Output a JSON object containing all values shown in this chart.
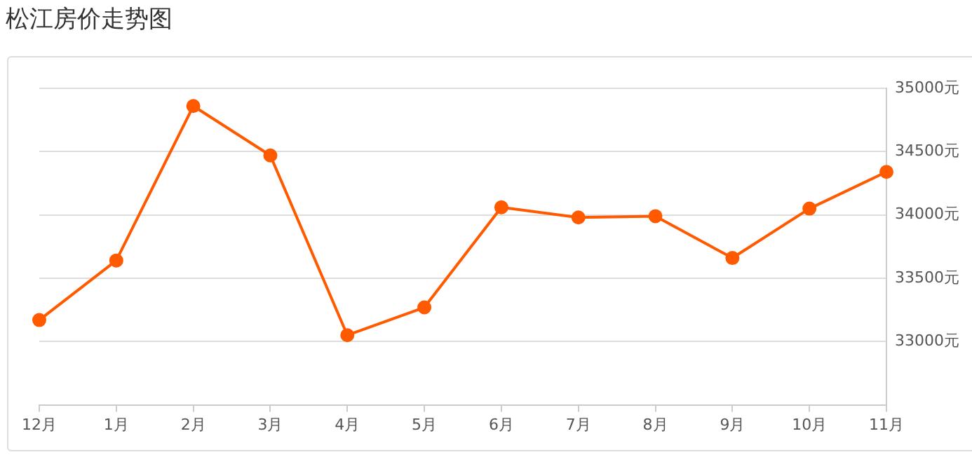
{
  "chart_data": {
    "type": "line",
    "title": "松江房价走势图",
    "categories": [
      "12月",
      "1月",
      "2月",
      "3月",
      "4月",
      "5月",
      "6月",
      "7月",
      "8月",
      "9月",
      "10月",
      "11月"
    ],
    "series": [
      {
        "color": "#ff5a00",
        "values": [
          33170,
          33640,
          34860,
          34470,
          33050,
          33270,
          34060,
          33980,
          33990,
          33660,
          34050,
          34340
        ]
      }
    ],
    "ylim": [
      32500,
      35000
    ],
    "yticks": [
      {
        "value": 33000,
        "label": "33000元"
      },
      {
        "value": 33500,
        "label": "33500元"
      },
      {
        "value": 34000,
        "label": "34000元"
      },
      {
        "value": 34500,
        "label": "34500元"
      },
      {
        "value": 35000,
        "label": "35000元"
      }
    ],
    "grid": "y",
    "legend": false,
    "marker": "circle",
    "line_style": "solid"
  }
}
